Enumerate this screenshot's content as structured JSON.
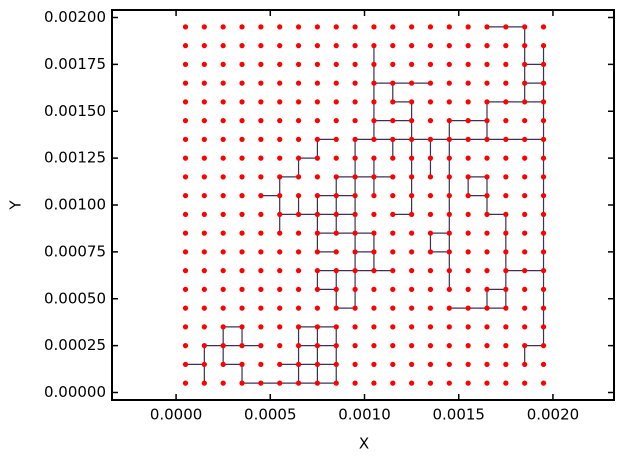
{
  "chart_data": {
    "type": "scatter",
    "x_label": "X",
    "y_label": "Y",
    "xlim": [
      -0.00034,
      0.002324
    ],
    "ylim": [
      -4e-05,
      0.00204
    ],
    "xticks": [
      {
        "value": 0,
        "label": "0.0000"
      },
      {
        "value": 0.0005,
        "label": "0.0005"
      },
      {
        "value": 0.001,
        "label": "0.0010"
      },
      {
        "value": 0.0015,
        "label": "0.0015"
      },
      {
        "value": 0.002,
        "label": "0.0020"
      }
    ],
    "yticks": [
      {
        "value": 0,
        "label": "0.00000"
      },
      {
        "value": 0.00025,
        "label": "0.00025"
      },
      {
        "value": 0.0005,
        "label": "0.00050"
      },
      {
        "value": 0.00075,
        "label": "0.00075"
      },
      {
        "value": 0.001,
        "label": "0.00100"
      },
      {
        "value": 0.00125,
        "label": "0.00125"
      },
      {
        "value": 0.0015,
        "label": "0.00150"
      },
      {
        "value": 0.00175,
        "label": "0.00175"
      },
      {
        "value": 0.002,
        "label": "0.00200"
      }
    ],
    "point_color": "#ff0000",
    "line_color": "#3b3056",
    "x": [
      5e-05,
      0.00015,
      0.00025,
      0.00035,
      0.00045,
      0.00055,
      0.00065,
      0.00075,
      0.00085,
      0.00095,
      0.00105,
      0.00115,
      0.00125,
      0.00135,
      0.00145,
      0.00155,
      0.00165,
      0.00175,
      0.00185,
      0.00195
    ],
    "y": [
      5e-05,
      0.00015,
      0.00025,
      0.00035,
      0.00045,
      0.00055,
      0.00065,
      0.00075,
      0.00085,
      0.00095,
      0.00105,
      0.00115,
      0.00125,
      0.00135,
      0.00145,
      0.00155,
      0.00165,
      0.00175,
      0.00185,
      0.00195
    ],
    "segments": [
      [
        5e-05,
        0.00015,
        0.00015,
        0.00015
      ],
      [
        0.00015,
        5e-05,
        0.00015,
        0.00015
      ],
      [
        0.00015,
        0.00015,
        0.00015,
        0.00025
      ],
      [
        0.00015,
        0.00025,
        0.00025,
        0.00025
      ],
      [
        0.00025,
        0.00025,
        0.00035,
        0.00025
      ],
      [
        0.00035,
        0.00025,
        0.00045,
        0.00025
      ],
      [
        0.00025,
        0.00025,
        0.00025,
        0.00035
      ],
      [
        0.00025,
        0.00035,
        0.00035,
        0.00035
      ],
      [
        0.00035,
        0.00025,
        0.00035,
        0.00035
      ],
      [
        0.00025,
        0.00015,
        0.00025,
        0.00025
      ],
      [
        0.00025,
        0.00015,
        0.00035,
        0.00015
      ],
      [
        0.00035,
        5e-05,
        0.00035,
        0.00015
      ],
      [
        0.00035,
        5e-05,
        0.00045,
        5e-05
      ],
      [
        0.00045,
        5e-05,
        0.00055,
        5e-05
      ],
      [
        0.00055,
        5e-05,
        0.00065,
        5e-05
      ],
      [
        0.00065,
        5e-05,
        0.00075,
        5e-05
      ],
      [
        0.00075,
        5e-05,
        0.00085,
        5e-05
      ],
      [
        0.00065,
        5e-05,
        0.00065,
        0.00015
      ],
      [
        0.00065,
        0.00015,
        0.00065,
        0.00025
      ],
      [
        0.00065,
        0.00025,
        0.00065,
        0.00035
      ],
      [
        0.00055,
        0.00015,
        0.00065,
        0.00015
      ],
      [
        0.00065,
        0.00015,
        0.00075,
        0.00015
      ],
      [
        0.00075,
        0.00015,
        0.00085,
        0.00015
      ],
      [
        0.00065,
        0.00025,
        0.00075,
        0.00025
      ],
      [
        0.00075,
        0.00025,
        0.00085,
        0.00025
      ],
      [
        0.00065,
        0.00035,
        0.00075,
        0.00035
      ],
      [
        0.00075,
        0.00035,
        0.00085,
        0.00035
      ],
      [
        0.00075,
        5e-05,
        0.00075,
        0.00015
      ],
      [
        0.00075,
        0.00015,
        0.00075,
        0.00025
      ],
      [
        0.00075,
        0.00025,
        0.00075,
        0.00035
      ],
      [
        0.00085,
        0.00015,
        0.00085,
        0.00025
      ],
      [
        0.00085,
        0.00025,
        0.00085,
        0.00035
      ],
      [
        0.00085,
        5e-05,
        0.00085,
        0.00015
      ],
      [
        0.00075,
        0.00065,
        0.00085,
        0.00065
      ],
      [
        0.00085,
        0.00065,
        0.00095,
        0.00065
      ],
      [
        0.00095,
        0.00065,
        0.00105,
        0.00065
      ],
      [
        0.00105,
        0.00065,
        0.00115,
        0.00065
      ],
      [
        0.00075,
        0.00055,
        0.00075,
        0.00065
      ],
      [
        0.00075,
        0.00055,
        0.00085,
        0.00055
      ],
      [
        0.00085,
        0.00045,
        0.00085,
        0.00055
      ],
      [
        0.00085,
        0.00055,
        0.00085,
        0.00065
      ],
      [
        0.00085,
        0.00045,
        0.00095,
        0.00045
      ],
      [
        0.00095,
        0.00045,
        0.00095,
        0.00055
      ],
      [
        0.00095,
        0.00055,
        0.00095,
        0.00065
      ],
      [
        0.00095,
        0.00065,
        0.00095,
        0.00075
      ],
      [
        0.00095,
        0.00075,
        0.00095,
        0.00085
      ],
      [
        0.00095,
        0.00085,
        0.00095,
        0.00095
      ],
      [
        0.00095,
        0.00095,
        0.00095,
        0.00105
      ],
      [
        0.00095,
        0.00105,
        0.00095,
        0.00115
      ],
      [
        0.00095,
        0.00115,
        0.00095,
        0.00125
      ],
      [
        0.00095,
        0.00125,
        0.00095,
        0.00135
      ],
      [
        0.00095,
        0.00075,
        0.00105,
        0.00075
      ],
      [
        0.00105,
        0.00075,
        0.00105,
        0.00085
      ],
      [
        0.00095,
        0.00085,
        0.00105,
        0.00085
      ],
      [
        0.00105,
        0.00065,
        0.00105,
        0.00075
      ],
      [
        0.00075,
        0.00085,
        0.00085,
        0.00085
      ],
      [
        0.00075,
        0.00075,
        0.00075,
        0.00085
      ],
      [
        0.00075,
        0.00085,
        0.00075,
        0.00095
      ],
      [
        0.00075,
        0.00095,
        0.00075,
        0.00105
      ],
      [
        0.00075,
        0.00075,
        0.00085,
        0.00075
      ],
      [
        0.00085,
        0.00085,
        0.00095,
        0.00085
      ],
      [
        0.00075,
        0.00095,
        0.00085,
        0.00095
      ],
      [
        0.00085,
        0.00095,
        0.00095,
        0.00095
      ],
      [
        0.00075,
        0.00105,
        0.00085,
        0.00105
      ],
      [
        0.00085,
        0.00105,
        0.00095,
        0.00105
      ],
      [
        0.00085,
        0.00085,
        0.00085,
        0.00095
      ],
      [
        0.00085,
        0.00095,
        0.00085,
        0.00105
      ],
      [
        0.00085,
        0.00105,
        0.00085,
        0.00115
      ],
      [
        0.00045,
        0.00105,
        0.00055,
        0.00105
      ],
      [
        0.00055,
        0.00095,
        0.00055,
        0.00105
      ],
      [
        0.00055,
        0.00105,
        0.00055,
        0.00115
      ],
      [
        0.00055,
        0.00085,
        0.00055,
        0.00095
      ],
      [
        0.00055,
        0.00095,
        0.00065,
        0.00095
      ],
      [
        0.00065,
        0.00095,
        0.00075,
        0.00095
      ],
      [
        0.00065,
        0.00095,
        0.00065,
        0.00105
      ],
      [
        0.00055,
        0.00115,
        0.00065,
        0.00115
      ],
      [
        0.00065,
        0.00115,
        0.00065,
        0.00125
      ],
      [
        0.00065,
        0.00125,
        0.00075,
        0.00125
      ],
      [
        0.00075,
        0.00125,
        0.00075,
        0.00135
      ],
      [
        0.00075,
        0.00135,
        0.00085,
        0.00135
      ],
      [
        0.00085,
        0.00115,
        0.00095,
        0.00115
      ],
      [
        0.00095,
        0.00115,
        0.00105,
        0.00115
      ],
      [
        0.00105,
        0.00105,
        0.00105,
        0.00115
      ],
      [
        0.00105,
        0.00115,
        0.00105,
        0.00125
      ],
      [
        0.00105,
        0.00115,
        0.00115,
        0.00115
      ],
      [
        0.00095,
        0.00135,
        0.00105,
        0.00135
      ],
      [
        0.00105,
        0.00135,
        0.00115,
        0.00135
      ],
      [
        0.00115,
        0.00135,
        0.00125,
        0.00135
      ],
      [
        0.00125,
        0.00135,
        0.00135,
        0.00135
      ],
      [
        0.00135,
        0.00135,
        0.00145,
        0.00135
      ],
      [
        0.00145,
        0.00135,
        0.00155,
        0.00135
      ],
      [
        0.00155,
        0.00135,
        0.00165,
        0.00135
      ],
      [
        0.00165,
        0.00135,
        0.00175,
        0.00135
      ],
      [
        0.00175,
        0.00135,
        0.00185,
        0.00135
      ],
      [
        0.00185,
        0.00135,
        0.00195,
        0.00135
      ],
      [
        0.00105,
        0.00135,
        0.00105,
        0.00145
      ],
      [
        0.00105,
        0.00145,
        0.00105,
        0.00155
      ],
      [
        0.00105,
        0.00155,
        0.00105,
        0.00165
      ],
      [
        0.00105,
        0.00165,
        0.00105,
        0.00175
      ],
      [
        0.00105,
        0.00175,
        0.00105,
        0.00185
      ],
      [
        0.00105,
        0.00165,
        0.00115,
        0.00165
      ],
      [
        0.00115,
        0.00155,
        0.00115,
        0.00165
      ],
      [
        0.00115,
        0.00155,
        0.00125,
        0.00155
      ],
      [
        0.00115,
        0.00165,
        0.00125,
        0.00165
      ],
      [
        0.00125,
        0.00165,
        0.00135,
        0.00165
      ],
      [
        0.00105,
        0.00145,
        0.00115,
        0.00145
      ],
      [
        0.00115,
        0.00145,
        0.00125,
        0.00145
      ],
      [
        0.00125,
        0.00145,
        0.00125,
        0.00155
      ],
      [
        0.00125,
        0.00135,
        0.00125,
        0.00145
      ],
      [
        0.00115,
        0.00125,
        0.00115,
        0.00135
      ],
      [
        0.00115,
        0.00095,
        0.00125,
        0.00095
      ],
      [
        0.00125,
        0.00095,
        0.00125,
        0.00105
      ],
      [
        0.00125,
        0.00105,
        0.00125,
        0.00115
      ],
      [
        0.00125,
        0.00115,
        0.00125,
        0.00125
      ],
      [
        0.00125,
        0.00125,
        0.00125,
        0.00135
      ],
      [
        0.00135,
        0.00115,
        0.00135,
        0.00125
      ],
      [
        0.00135,
        0.00125,
        0.00135,
        0.00135
      ],
      [
        0.00135,
        0.00075,
        0.00145,
        0.00075
      ],
      [
        0.00135,
        0.00075,
        0.00135,
        0.00085
      ],
      [
        0.00145,
        0.00075,
        0.00145,
        0.00085
      ],
      [
        0.00135,
        0.00085,
        0.00145,
        0.00085
      ],
      [
        0.00145,
        0.00065,
        0.00145,
        0.00075
      ],
      [
        0.00145,
        0.00055,
        0.00145,
        0.00065
      ],
      [
        0.00145,
        0.00085,
        0.00145,
        0.00095
      ],
      [
        0.00145,
        0.00095,
        0.00145,
        0.00105
      ],
      [
        0.00145,
        0.00105,
        0.00145,
        0.00115
      ],
      [
        0.00145,
        0.00115,
        0.00145,
        0.00125
      ],
      [
        0.00145,
        0.00125,
        0.00145,
        0.00135
      ],
      [
        0.00145,
        0.00145,
        0.00155,
        0.00145
      ],
      [
        0.00155,
        0.00145,
        0.00165,
        0.00145
      ],
      [
        0.00145,
        0.00135,
        0.00145,
        0.00145
      ],
      [
        0.00165,
        0.00135,
        0.00165,
        0.00145
      ],
      [
        0.00165,
        0.00145,
        0.00165,
        0.00155
      ],
      [
        0.00165,
        0.00155,
        0.00175,
        0.00155
      ],
      [
        0.00175,
        0.00155,
        0.00185,
        0.00155
      ],
      [
        0.00185,
        0.00155,
        0.00195,
        0.00155
      ],
      [
        0.00195,
        0.00025,
        0.00195,
        0.00035
      ],
      [
        0.00195,
        0.00035,
        0.00195,
        0.00045
      ],
      [
        0.00195,
        0.00045,
        0.00195,
        0.00055
      ],
      [
        0.00195,
        0.00055,
        0.00195,
        0.00065
      ],
      [
        0.00195,
        0.00065,
        0.00195,
        0.00075
      ],
      [
        0.00195,
        0.00075,
        0.00195,
        0.00085
      ],
      [
        0.00195,
        0.00085,
        0.00195,
        0.00095
      ],
      [
        0.00195,
        0.00095,
        0.00195,
        0.00105
      ],
      [
        0.00195,
        0.00105,
        0.00195,
        0.00115
      ],
      [
        0.00195,
        0.00115,
        0.00195,
        0.00125
      ],
      [
        0.00195,
        0.00125,
        0.00195,
        0.00135
      ],
      [
        0.00195,
        0.00135,
        0.00195,
        0.00145
      ],
      [
        0.00195,
        0.00145,
        0.00195,
        0.00155
      ],
      [
        0.00195,
        0.00155,
        0.00195,
        0.00165
      ],
      [
        0.00195,
        0.00165,
        0.00195,
        0.00175
      ],
      [
        0.00195,
        0.00175,
        0.00195,
        0.00185
      ],
      [
        0.00165,
        0.00195,
        0.00175,
        0.00195
      ],
      [
        0.00175,
        0.00195,
        0.00185,
        0.00195
      ],
      [
        0.00185,
        0.00185,
        0.00185,
        0.00195
      ],
      [
        0.00185,
        0.00175,
        0.00195,
        0.00175
      ],
      [
        0.00185,
        0.00165,
        0.00185,
        0.00175
      ],
      [
        0.00185,
        0.00175,
        0.00185,
        0.00185
      ],
      [
        0.00185,
        0.00165,
        0.00195,
        0.00165
      ],
      [
        0.00185,
        0.00155,
        0.00185,
        0.00165
      ],
      [
        0.00155,
        0.00115,
        0.00165,
        0.00115
      ],
      [
        0.00155,
        0.00105,
        0.00165,
        0.00105
      ],
      [
        0.00155,
        0.00105,
        0.00155,
        0.00115
      ],
      [
        0.00165,
        0.00105,
        0.00165,
        0.00115
      ],
      [
        0.00165,
        0.00095,
        0.00165,
        0.00105
      ],
      [
        0.00165,
        0.00095,
        0.00175,
        0.00095
      ],
      [
        0.00175,
        0.00085,
        0.00175,
        0.00095
      ],
      [
        0.00175,
        0.00075,
        0.00175,
        0.00085
      ],
      [
        0.00175,
        0.00065,
        0.00175,
        0.00075
      ],
      [
        0.00175,
        0.00055,
        0.00175,
        0.00065
      ],
      [
        0.00165,
        0.00055,
        0.00175,
        0.00055
      ],
      [
        0.00165,
        0.00045,
        0.00165,
        0.00055
      ],
      [
        0.00145,
        0.00045,
        0.00155,
        0.00045
      ],
      [
        0.00155,
        0.00045,
        0.00165,
        0.00045
      ],
      [
        0.00165,
        0.00045,
        0.00175,
        0.00045
      ],
      [
        0.00175,
        0.00045,
        0.00175,
        0.00055
      ],
      [
        0.00175,
        0.00065,
        0.00185,
        0.00065
      ],
      [
        0.00185,
        0.00065,
        0.00195,
        0.00065
      ],
      [
        0.00185,
        0.00025,
        0.00195,
        0.00025
      ],
      [
        0.00185,
        0.00015,
        0.00185,
        0.00025
      ]
    ]
  }
}
